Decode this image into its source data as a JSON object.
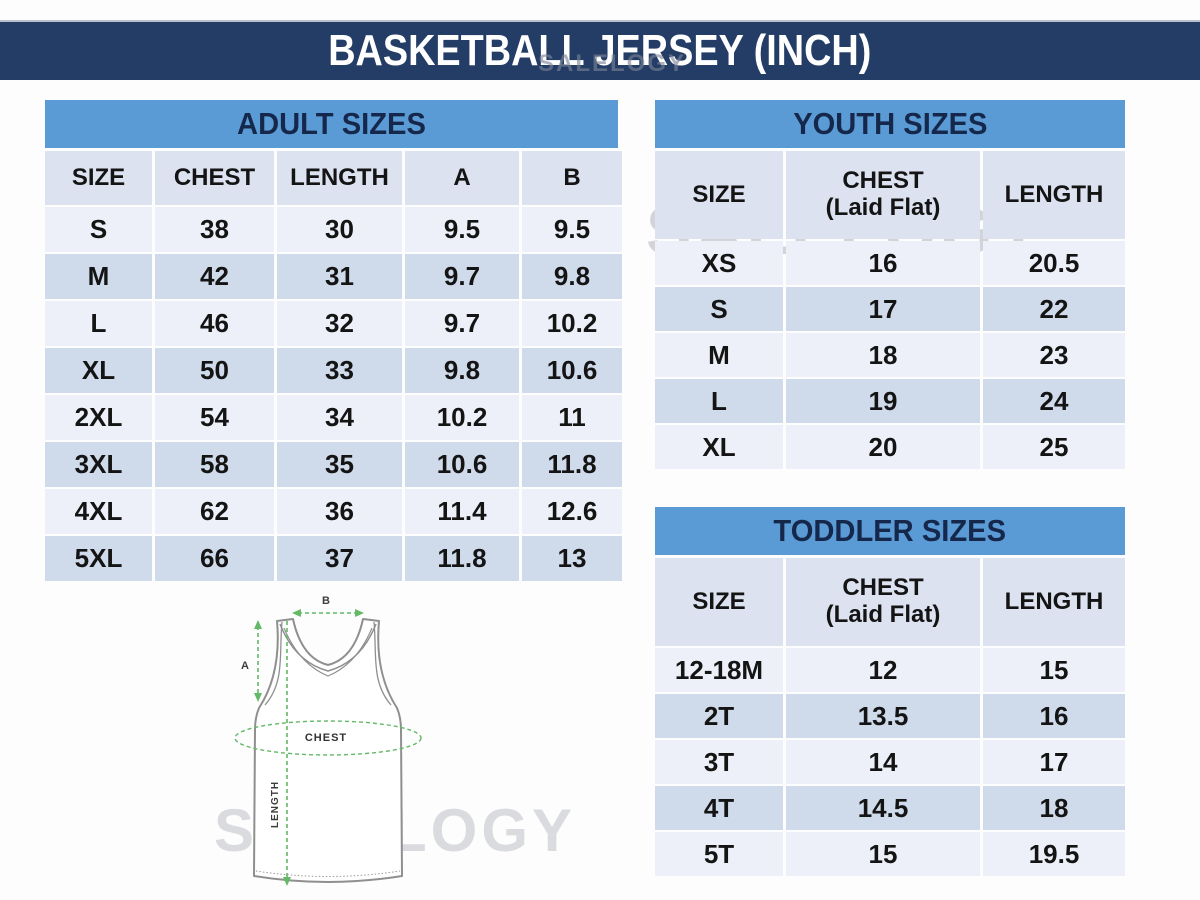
{
  "title": "BASKETBALL JERSEY (INCH)",
  "watermark": {
    "text": "SALELOGY"
  },
  "colors": {
    "title_bar_navy": "#243d66",
    "title_text": "#ffffff",
    "table_header_blue": "#5b9bd5",
    "table_header_text": "#15284c",
    "column_header_row": "#dce2f0",
    "row_light": "#edf0f8",
    "row_dark": "#cfdaeb",
    "cell_text": "#141414",
    "watermark_gray": "#c6c8ce",
    "diagram_outline_gray": "#8f8f8f",
    "diagram_measure_green": "#62b966"
  },
  "chart_data": [
    {
      "type": "table",
      "key": "adult",
      "title": "ADULT SIZES",
      "columns": [
        "SIZE",
        "CHEST",
        "LENGTH",
        "A",
        "B"
      ],
      "rows": [
        [
          "S",
          "38",
          "30",
          "9.5",
          "9.5"
        ],
        [
          "M",
          "42",
          "31",
          "9.7",
          "9.8"
        ],
        [
          "L",
          "46",
          "32",
          "9.7",
          "10.2"
        ],
        [
          "XL",
          "50",
          "33",
          "9.8",
          "10.6"
        ],
        [
          "2XL",
          "54",
          "34",
          "10.2",
          "11"
        ],
        [
          "3XL",
          "58",
          "35",
          "10.6",
          "11.8"
        ],
        [
          "4XL",
          "62",
          "36",
          "11.4",
          "12.6"
        ],
        [
          "5XL",
          "66",
          "37",
          "11.8",
          "13"
        ]
      ]
    },
    {
      "type": "table",
      "key": "youth",
      "title": "YOUTH SIZES",
      "columns": [
        "SIZE",
        "CHEST\n(Laid Flat)",
        "LENGTH"
      ],
      "rows": [
        [
          "XS",
          "16",
          "20.5"
        ],
        [
          "S",
          "17",
          "22"
        ],
        [
          "M",
          "18",
          "23"
        ],
        [
          "L",
          "19",
          "24"
        ],
        [
          "XL",
          "20",
          "25"
        ]
      ]
    },
    {
      "type": "table",
      "key": "toddler",
      "title": "TODDLER SIZES",
      "columns": [
        "SIZE",
        "CHEST\n(Laid Flat)",
        "LENGTH"
      ],
      "rows": [
        [
          "12-18M",
          "12",
          "15"
        ],
        [
          "2T",
          "13.5",
          "16"
        ],
        [
          "3T",
          "14",
          "17"
        ],
        [
          "4T",
          "14.5",
          "18"
        ],
        [
          "5T",
          "15",
          "19.5"
        ]
      ]
    }
  ],
  "diagram": {
    "labels": {
      "a": "A",
      "b": "B",
      "chest": "CHEST",
      "length": "LENGTH"
    }
  }
}
